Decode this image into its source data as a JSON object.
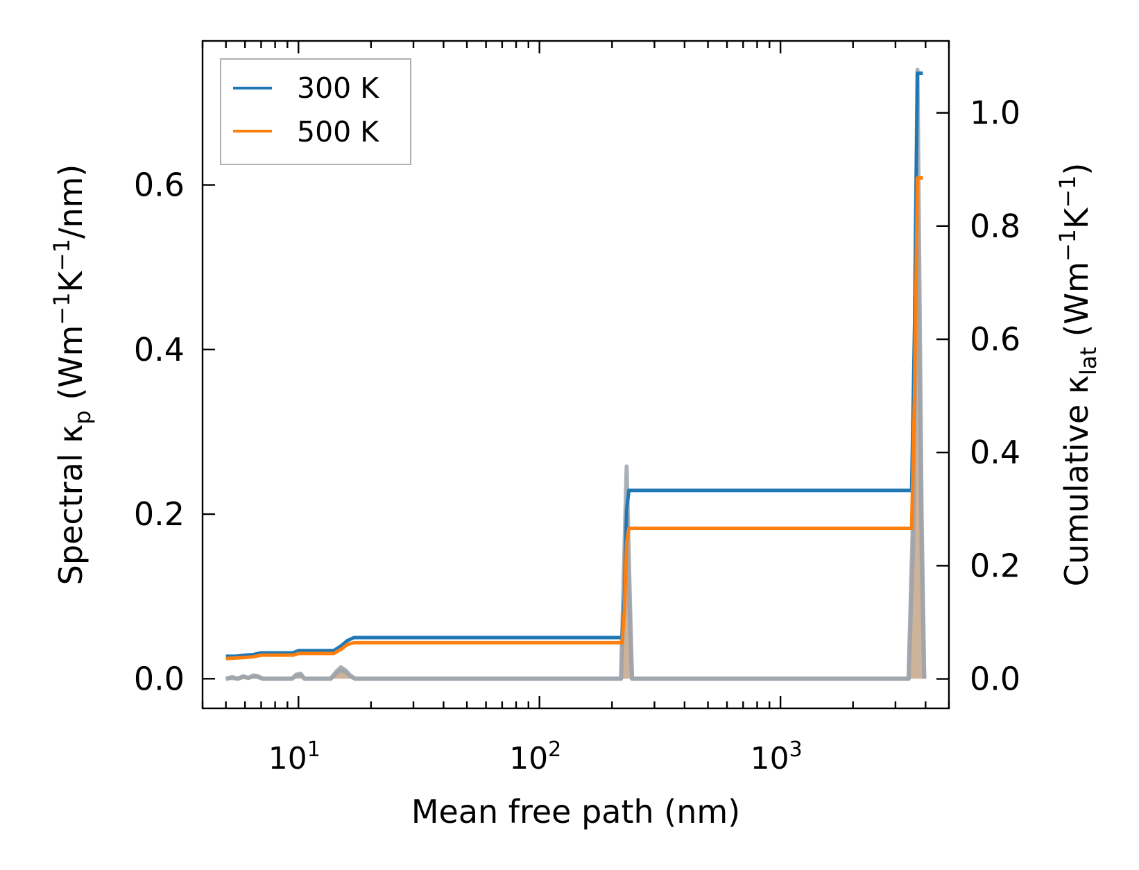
{
  "chart_data": {
    "type": "line",
    "x_scale": "log",
    "xlim": [
      4.0,
      5000
    ],
    "xlabel": "Mean free path (nm)",
    "xticks": [
      {
        "value": 10,
        "base": "10",
        "exp": "1"
      },
      {
        "value": 100,
        "base": "10",
        "exp": "2"
      },
      {
        "value": 1000,
        "base": "10",
        "exp": "3"
      }
    ],
    "y_left": {
      "label_parts": [
        "Spectral κ",
        "p",
        " (Wm",
        "−1",
        "K",
        "−1",
        "/nm)"
      ],
      "lim": [
        -0.036,
        0.775
      ],
      "ticks": [
        "0.0",
        "0.2",
        "0.4",
        "0.6"
      ],
      "tick_values": [
        0.0,
        0.2,
        0.4,
        0.6
      ]
    },
    "y_right": {
      "label_parts": [
        "Cumulative κ",
        "lat",
        " (Wm",
        "−1",
        "K",
        "−1",
        ")"
      ],
      "lim": [
        -0.052,
        1.127
      ],
      "ticks": [
        "0.0",
        "0.2",
        "0.4",
        "0.6",
        "0.8",
        "1.0"
      ],
      "tick_values": [
        0.0,
        0.2,
        0.4,
        0.6,
        0.8,
        1.0
      ]
    },
    "legend": {
      "placement": "upper-left",
      "entries": [
        {
          "label": "300 K",
          "color": "#1f77b4"
        },
        {
          "label": "500 K",
          "color": "#ff7f0e"
        }
      ]
    },
    "series": [
      {
        "name": "300 K",
        "axis": "right",
        "kind": "cumulative",
        "color": "#1f77b4",
        "x": [
          5.0,
          5.5,
          6.0,
          6.5,
          7.0,
          9.5,
          10.0,
          14.0,
          15.0,
          16.0,
          17.0,
          220,
          225,
          230,
          235,
          3500,
          3600,
          3700,
          3900
        ],
        "y": [
          0.04,
          0.04,
          0.042,
          0.043,
          0.046,
          0.046,
          0.05,
          0.05,
          0.058,
          0.068,
          0.073,
          0.073,
          0.14,
          0.3,
          0.333,
          0.333,
          0.62,
          1.07,
          1.07
        ]
      },
      {
        "name": "500 K",
        "axis": "right",
        "kind": "cumulative",
        "color": "#ff7f0e",
        "x": [
          5.0,
          5.5,
          6.0,
          6.5,
          7.0,
          9.5,
          10.0,
          14.0,
          15.0,
          16.0,
          17.0,
          220,
          225,
          230,
          235,
          3500,
          3600,
          3700,
          3900
        ],
        "y": [
          0.036,
          0.037,
          0.038,
          0.039,
          0.042,
          0.042,
          0.045,
          0.045,
          0.052,
          0.061,
          0.064,
          0.064,
          0.12,
          0.24,
          0.266,
          0.266,
          0.5,
          0.885,
          0.885
        ]
      },
      {
        "name": "",
        "axis": "left",
        "kind": "spectral",
        "color": "#1f77b4",
        "x": [
          5.0,
          5.3,
          5.6,
          5.9,
          6.2,
          6.5,
          6.8,
          7.1,
          9.4,
          9.8,
          10.2,
          10.6,
          13.6,
          14.3,
          15.0,
          15.7,
          16.4,
          17.2,
          218,
          224,
          230,
          236,
          242,
          3400,
          3550,
          3700,
          3850,
          3950
        ],
        "y": [
          0.0,
          0.002,
          0.0,
          0.003,
          0.001,
          0.004,
          0.003,
          0.0,
          0.0,
          0.005,
          0.006,
          0.0,
          0.0,
          0.008,
          0.014,
          0.01,
          0.004,
          0.0,
          0.0,
          0.13,
          0.258,
          0.12,
          0.0,
          0.0,
          0.2,
          0.74,
          0.2,
          0.0
        ]
      },
      {
        "name": "",
        "axis": "left",
        "kind": "spectral",
        "color": "#ff7f0e",
        "x": [
          5.0,
          5.3,
          5.6,
          5.9,
          6.2,
          6.5,
          6.8,
          7.1,
          9.4,
          9.8,
          10.2,
          10.6,
          13.6,
          14.3,
          15.0,
          15.7,
          16.4,
          17.2,
          218,
          224,
          230,
          236,
          242,
          3400,
          3550,
          3700,
          3850,
          3950
        ],
        "y": [
          0.0,
          0.001,
          0.0,
          0.002,
          0.001,
          0.003,
          0.002,
          0.0,
          0.0,
          0.004,
          0.005,
          0.0,
          0.0,
          0.006,
          0.011,
          0.008,
          0.003,
          0.0,
          0.0,
          0.1,
          0.2,
          0.09,
          0.0,
          0.0,
          0.16,
          0.6,
          0.16,
          0.0
        ]
      }
    ]
  }
}
